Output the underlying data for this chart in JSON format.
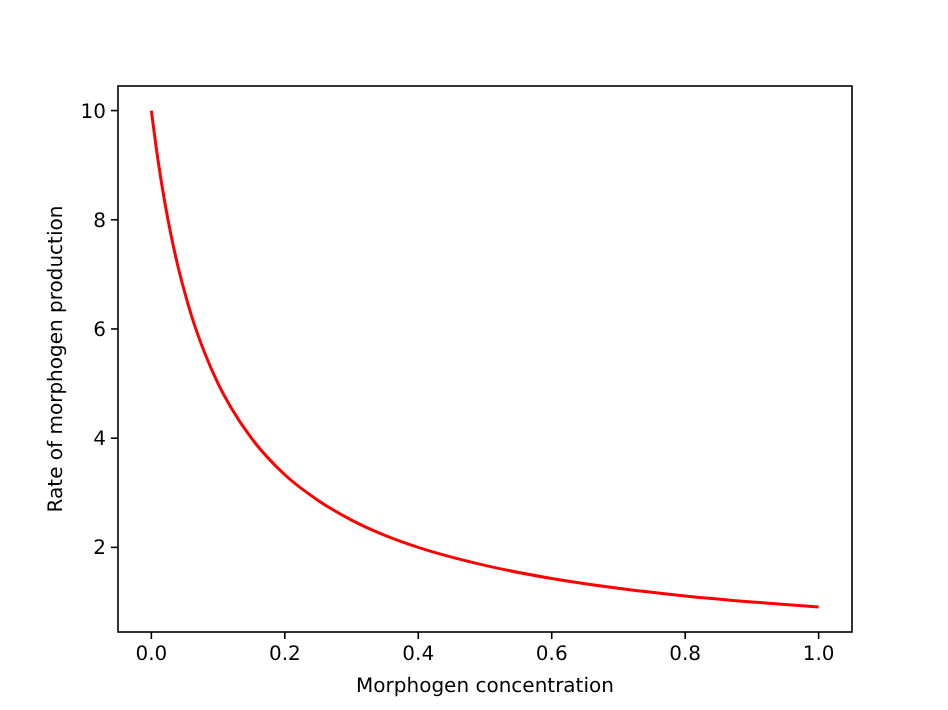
{
  "chart_data": {
    "type": "line",
    "xlabel": "Morphogen concentration",
    "ylabel": "Rate of morphogen production",
    "x": [
      0,
      0.01,
      0.02,
      0.03,
      0.04,
      0.05,
      0.06,
      0.08,
      0.1,
      0.12,
      0.15,
      0.2,
      0.25,
      0.3,
      0.35,
      0.4,
      0.5,
      0.6,
      0.7,
      0.8,
      0.9,
      1.0
    ],
    "series": [
      {
        "color": "#ff0000",
        "values": [
          10,
          9.09,
          8.33,
          7.69,
          7.14,
          6.67,
          6.25,
          5.56,
          5.0,
          4.55,
          4.0,
          3.33,
          2.86,
          2.5,
          2.22,
          2.0,
          1.67,
          1.43,
          1.25,
          1.11,
          1.0,
          0.91
        ]
      }
    ],
    "xlim": [
      -0.05,
      1.05
    ],
    "ylim": [
      0.45,
      10.45
    ],
    "xticks": [
      {
        "value": 0,
        "label": "0.0"
      },
      0.2,
      0.4,
      0.6,
      0.8,
      {
        "value": 1,
        "label": "1.0"
      }
    ],
    "yticks": [
      2,
      4,
      6,
      8,
      10
    ],
    "grid": false,
    "marker": "none",
    "line_style": "solid"
  }
}
